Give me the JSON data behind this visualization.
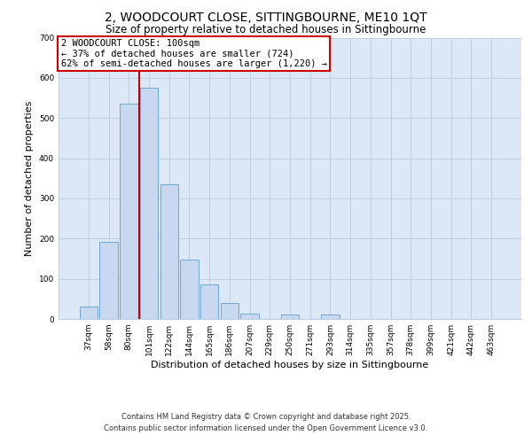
{
  "title": "2, WOODCOURT CLOSE, SITTINGBOURNE, ME10 1QT",
  "subtitle": "Size of property relative to detached houses in Sittingbourne",
  "xlabel": "Distribution of detached houses by size in Sittingbourne",
  "ylabel": "Number of detached properties",
  "bar_labels": [
    "37sqm",
    "58sqm",
    "80sqm",
    "101sqm",
    "122sqm",
    "144sqm",
    "165sqm",
    "186sqm",
    "207sqm",
    "229sqm",
    "250sqm",
    "271sqm",
    "293sqm",
    "314sqm",
    "335sqm",
    "357sqm",
    "378sqm",
    "399sqm",
    "421sqm",
    "442sqm",
    "463sqm"
  ],
  "bar_values": [
    30,
    191,
    535,
    575,
    335,
    148,
    86,
    40,
    13,
    0,
    10,
    0,
    10,
    0,
    0,
    0,
    0,
    0,
    0,
    0,
    0
  ],
  "bar_color": "#c8d8f0",
  "bar_edge_color": "#6fa8d0",
  "background_color": "#dce8f5",
  "property_line_label": "2 WOODCOURT CLOSE: 100sqm",
  "annotation_line1": "← 37% of detached houses are smaller (724)",
  "annotation_line2": "62% of semi-detached houses are larger (1,220) →",
  "annotation_box_color": "#ffffff",
  "annotation_box_edge_color": "#cc0000",
  "vline_color": "#cc0000",
  "ylim": [
    0,
    700
  ],
  "yticks": [
    0,
    100,
    200,
    300,
    400,
    500,
    600,
    700
  ],
  "grid_color": "#c0cfe0",
  "footer1": "Contains HM Land Registry data © Crown copyright and database right 2025.",
  "footer2": "Contains public sector information licensed under the Open Government Licence v3.0.",
  "title_fontsize": 10,
  "subtitle_fontsize": 8.5,
  "axis_label_fontsize": 8,
  "tick_fontsize": 6.5,
  "annotation_fontsize": 7.5,
  "footer_fontsize": 6
}
